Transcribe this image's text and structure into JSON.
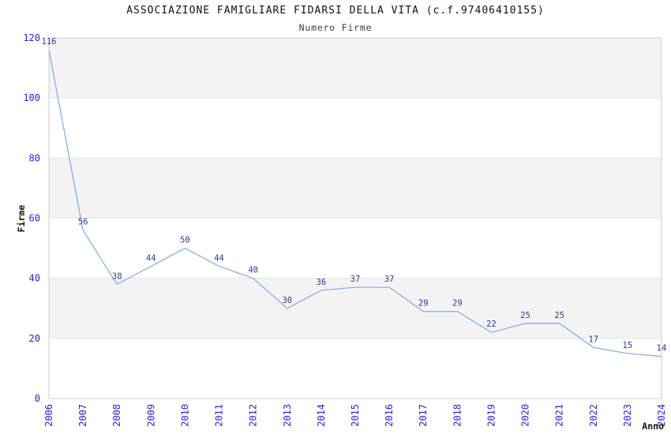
{
  "header": {
    "title": "ASSOCIAZIONE FAMIGLIARE FIDARSI DELLA VITA (c.f.97406410155)",
    "subtitle": "Numero Firme"
  },
  "chart_data": {
    "type": "line",
    "title": "ASSOCIAZIONE FAMIGLIARE FIDARSI DELLA VITA (c.f.97406410155)",
    "subtitle": "Numero Firme",
    "xlabel": "Anno",
    "ylabel": "Firme",
    "categories": [
      "2006",
      "2007",
      "2008",
      "2009",
      "2010",
      "2011",
      "2012",
      "2013",
      "2014",
      "2015",
      "2016",
      "2017",
      "2018",
      "2019",
      "2020",
      "2021",
      "2022",
      "2023",
      "2024"
    ],
    "values": [
      116,
      56,
      38,
      44,
      50,
      44,
      40,
      30,
      36,
      37,
      37,
      29,
      29,
      22,
      25,
      25,
      17,
      15,
      14
    ],
    "ylim": [
      0,
      120
    ],
    "ytick_step": 20,
    "yticks": [
      0,
      20,
      40,
      60,
      80,
      100,
      120
    ],
    "grid": "alternating-horizontal-bands",
    "legend": "none",
    "colors": {
      "line": "#82b1e8",
      "tick_label": "#2424d6",
      "data_label": "#333399",
      "band_fill": "#f3f3f3",
      "gridline": "#e4e4e4",
      "plot_border": "#cccccc",
      "background": "#ffffff"
    }
  }
}
